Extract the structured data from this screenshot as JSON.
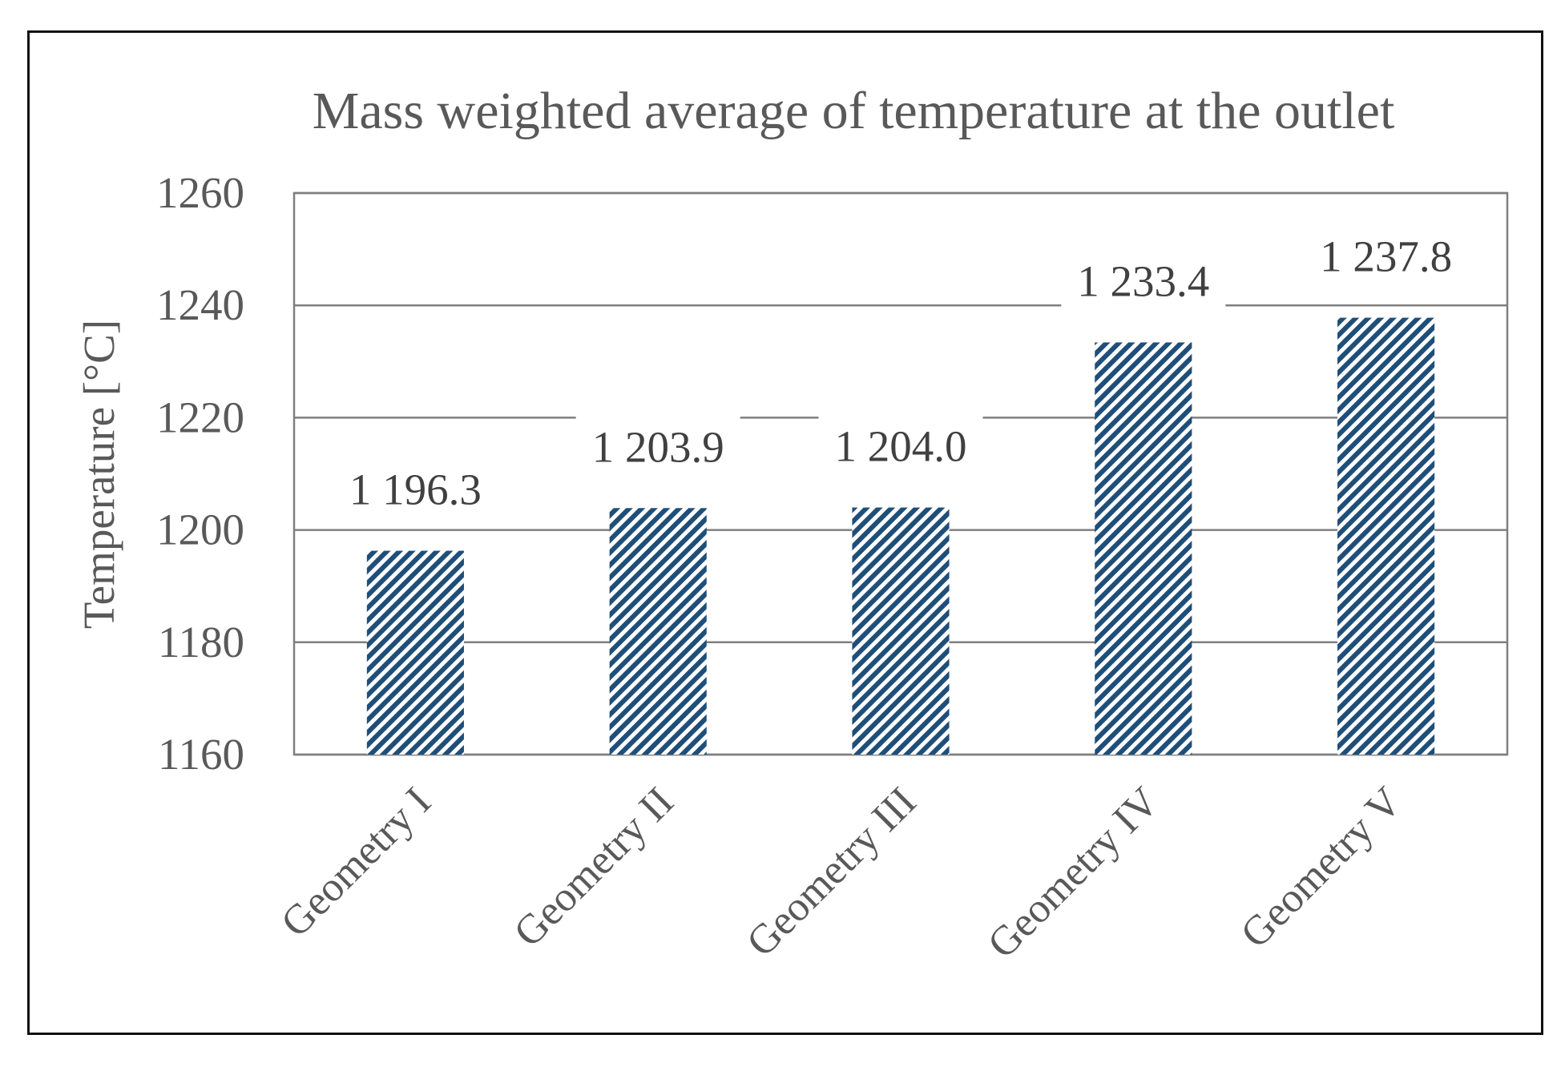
{
  "chart_data": {
    "type": "bar",
    "title": "Mass weighted average of temperature at the outlet",
    "xlabel": "",
    "ylabel": "Temperature [°C]",
    "categories": [
      "Geometry I",
      "Geometry II",
      "Geometry III",
      "Geometry IV",
      "Geometry V"
    ],
    "values": [
      1196.3,
      1203.9,
      1204.0,
      1233.4,
      1237.8
    ],
    "data_labels": [
      "1 196.3",
      "1 203.9",
      "1 204.0",
      "1 233.4",
      "1 237.8"
    ],
    "ylim": [
      1160,
      1260
    ],
    "yticks": [
      1160,
      1180,
      1200,
      1220,
      1240,
      1260
    ],
    "grid": true,
    "legend": "none",
    "colors": {
      "bar_pattern_fg": "#1f4e79",
      "bar_pattern_bg": "#ffffff",
      "gridline": "#7f7f7f",
      "text": "#595959"
    }
  }
}
